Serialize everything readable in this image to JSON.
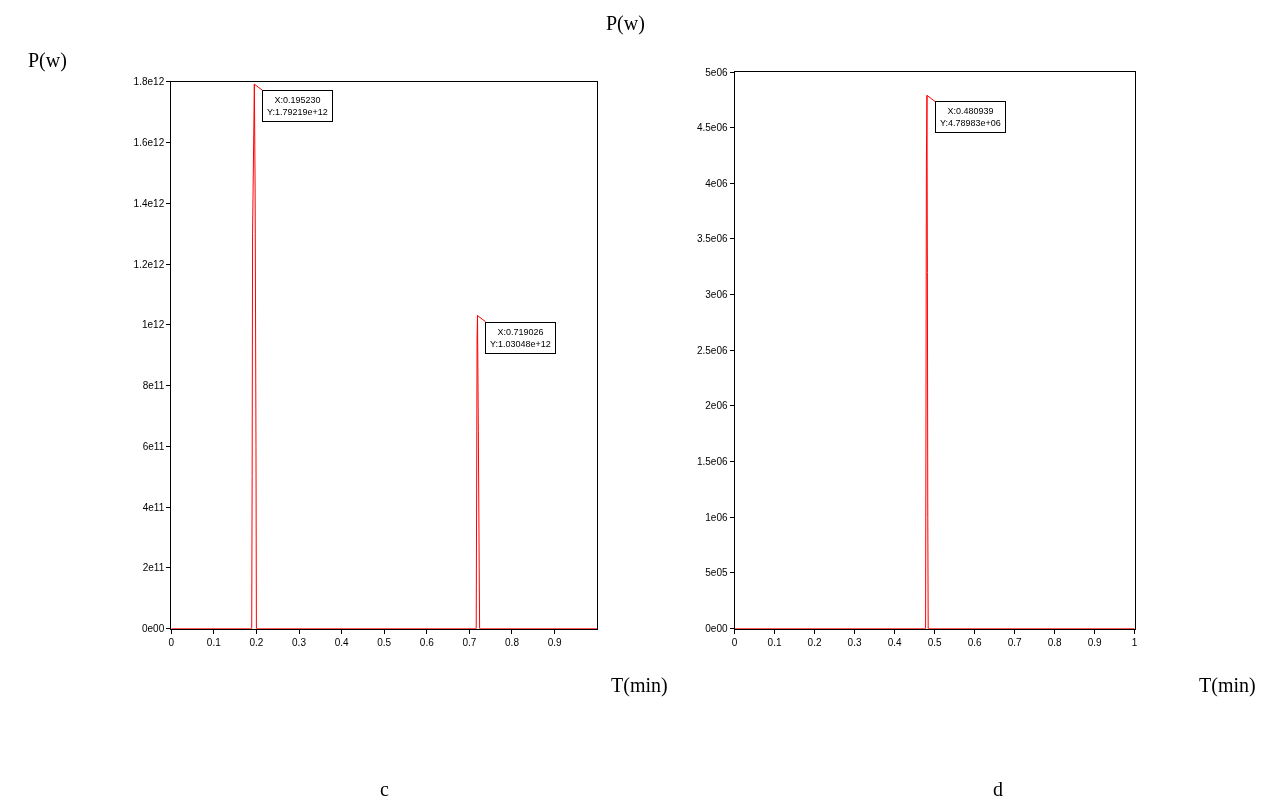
{
  "chart_data": [
    {
      "type": "line",
      "title": "c",
      "xlabel": "T(min)",
      "ylabel": "P(w)",
      "series": [
        {
          "color": "#ff0000",
          "x": [
            0,
            0.189,
            0.19,
            0.191,
            0.1952,
            0.197,
            0.199,
            0.2,
            0.716,
            0.717,
            0.718,
            0.719026,
            0.721,
            0.723,
            0.724,
            1
          ],
          "values": [
            0,
            0,
            500000000000.0,
            1300000000000.0,
            1792190000000.0,
            1450000000000.0,
            600000000000.0,
            0,
            0,
            450000000000.0,
            950000000000.0,
            1030480000000.0,
            650000000000.0,
            200000000000.0,
            0,
            0
          ]
        }
      ],
      "xlim": [
        0,
        1
      ],
      "xticks": [
        0,
        0.1,
        0.2,
        0.3,
        0.4,
        0.5,
        0.6,
        0.7,
        0.8,
        0.9
      ],
      "ylim": [
        0,
        1800000000000.0
      ],
      "yticks": [
        {
          "value": 0,
          "label": "0e00"
        },
        {
          "value": 200000000000.0,
          "label": "2e11"
        },
        {
          "value": 400000000000.0,
          "label": "4e11"
        },
        {
          "value": 600000000000.0,
          "label": "6e11"
        },
        {
          "value": 800000000000.0,
          "label": "8e11"
        },
        {
          "value": 1000000000000.0,
          "label": "1e12"
        },
        {
          "value": 1200000000000.0,
          "label": "1.2e12"
        },
        {
          "value": 1400000000000.0,
          "label": "1.4e12"
        },
        {
          "value": 1600000000000.0,
          "label": "1.6e12"
        },
        {
          "value": 1800000000000.0,
          "label": "1.8e12"
        }
      ],
      "marker": "none",
      "line_style": "solid",
      "annotations": [
        {
          "text": "X:0.195230\nY:1.79219e+12",
          "x": 0.19523,
          "y": 1792190000000.0
        },
        {
          "text": "X:0.719026\nY:1.03048e+12",
          "x": 0.719026,
          "y": 1030480000000.0
        }
      ]
    },
    {
      "type": "line",
      "title": "d",
      "xlabel": "T(min)",
      "ylabel": "P(w)",
      "series": [
        {
          "color": "#ff0000",
          "x": [
            0,
            0.4775,
            0.4785,
            0.4795,
            0.480939,
            0.482,
            0.483,
            0.484,
            1
          ],
          "values": [
            0,
            0,
            2000000.0,
            4200000.0,
            4789830.0,
            3200000.0,
            1000000.0,
            0,
            0
          ]
        }
      ],
      "xlim": [
        0,
        1
      ],
      "xticks": [
        0,
        0.1,
        0.2,
        0.3,
        0.4,
        0.5,
        0.6,
        0.7,
        0.8,
        0.9,
        1
      ],
      "ylim": [
        0,
        5000000.0
      ],
      "yticks": [
        {
          "value": 0,
          "label": "0e00"
        },
        {
          "value": 500000.0,
          "label": "5e05"
        },
        {
          "value": 1000000.0,
          "label": "1e06"
        },
        {
          "value": 1500000.0,
          "label": "1.5e06"
        },
        {
          "value": 2000000.0,
          "label": "2e06"
        },
        {
          "value": 2500000.0,
          "label": "2.5e06"
        },
        {
          "value": 3000000.0,
          "label": "3e06"
        },
        {
          "value": 3500000.0,
          "label": "3.5e06"
        },
        {
          "value": 4000000.0,
          "label": "4e06"
        },
        {
          "value": 4500000.0,
          "label": "4.5e06"
        },
        {
          "value": 5000000.0,
          "label": "5e06"
        }
      ],
      "marker": "none",
      "line_style": "solid",
      "annotations": [
        {
          "text": "X:0.480939\nY:4.78983e+06",
          "x": 0.480939,
          "y": 4789830.0
        }
      ]
    }
  ]
}
